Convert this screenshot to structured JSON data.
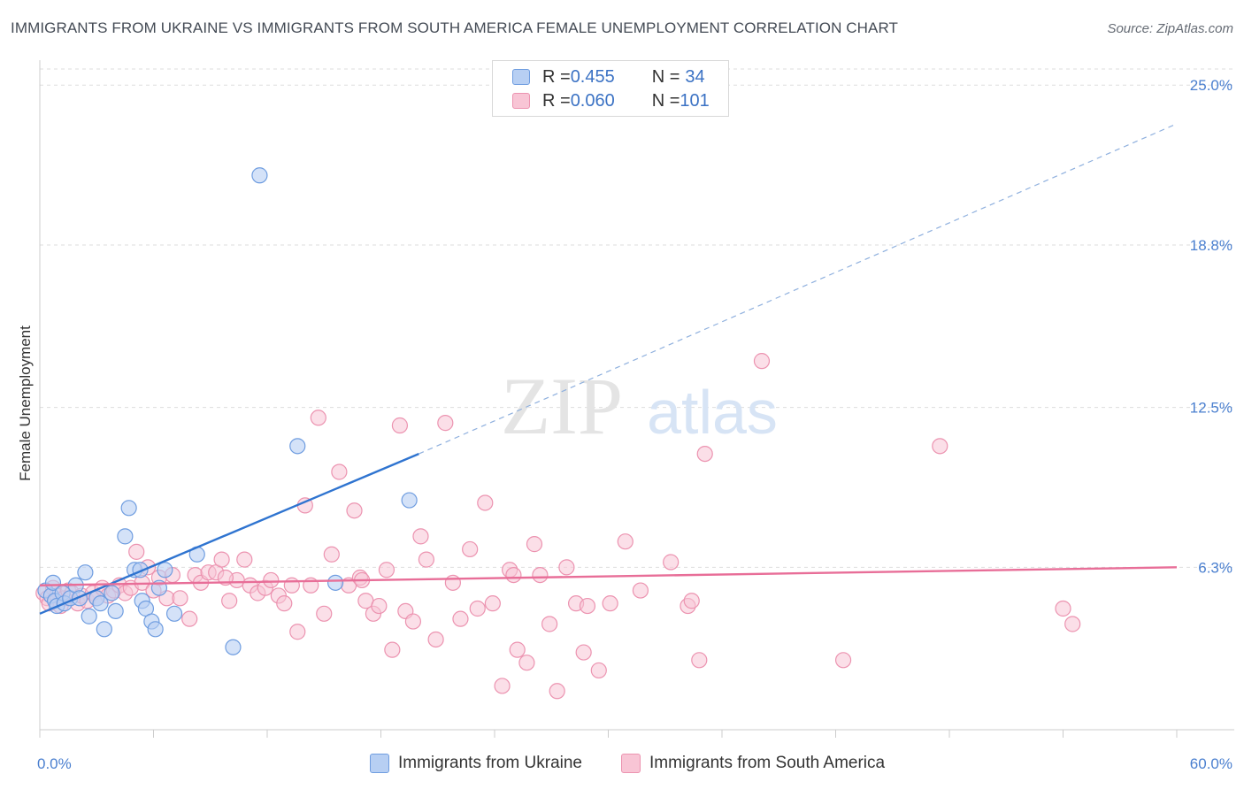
{
  "title": "IMMIGRANTS FROM UKRAINE VS IMMIGRANTS FROM SOUTH AMERICA FEMALE UNEMPLOYMENT CORRELATION CHART",
  "source": "Source: ZipAtlas.com",
  "watermark": {
    "zip": "ZIP",
    "atlas": "atlas"
  },
  "legend": {
    "rows": [
      {
        "r_label": "R = ",
        "r_value": "0.455",
        "n_label": "N = ",
        "n_value": "34"
      },
      {
        "r_label": "R = ",
        "r_value": "0.060",
        "n_label": "N = ",
        "n_value": "101"
      }
    ]
  },
  "colors": {
    "ukraine_fill": "#b7cff3",
    "ukraine_stroke": "#6f9de0",
    "ukraine_line": "#2f74d0",
    "sa_fill": "#f8c5d5",
    "sa_stroke": "#ec93b0",
    "sa_line": "#e86e98",
    "tick_label": "#4a7fcf",
    "grid": "#dddddd"
  },
  "chart_data": {
    "type": "scatter",
    "xlabel": "",
    "ylabel": "Female Unemployment",
    "xlim": [
      0,
      60
    ],
    "ylim": [
      0,
      25.9
    ],
    "x_tick_labels": [
      {
        "value": 0,
        "label": "0.0%"
      },
      {
        "value": 60,
        "label": "60.0%"
      }
    ],
    "y_tick_labels": [
      {
        "value": 6.3,
        "label": "6.3%"
      },
      {
        "value": 12.5,
        "label": "12.5%"
      },
      {
        "value": 18.8,
        "label": "18.8%"
      },
      {
        "value": 25.0,
        "label": "25.0%"
      }
    ],
    "grid": "horizontal dashed",
    "legend_placement": "bottom",
    "series": [
      {
        "name": "Immigrants from Ukraine",
        "points": [
          [
            0.3,
            5.4
          ],
          [
            0.6,
            5.2
          ],
          [
            0.8,
            5.0
          ],
          [
            0.7,
            5.7
          ],
          [
            0.9,
            4.8
          ],
          [
            1.2,
            5.3
          ],
          [
            1.3,
            4.9
          ],
          [
            1.6,
            5.1
          ],
          [
            1.9,
            5.6
          ],
          [
            2.1,
            5.1
          ],
          [
            2.4,
            6.1
          ],
          [
            2.6,
            4.4
          ],
          [
            3.0,
            5.1
          ],
          [
            3.2,
            4.9
          ],
          [
            3.4,
            3.9
          ],
          [
            3.8,
            5.3
          ],
          [
            4.0,
            4.6
          ],
          [
            4.5,
            7.5
          ],
          [
            4.7,
            8.6
          ],
          [
            5.0,
            6.2
          ],
          [
            5.3,
            6.2
          ],
          [
            5.4,
            5.0
          ],
          [
            5.6,
            4.7
          ],
          [
            5.9,
            4.2
          ],
          [
            6.1,
            3.9
          ],
          [
            6.3,
            5.5
          ],
          [
            6.6,
            6.2
          ],
          [
            7.1,
            4.5
          ],
          [
            8.3,
            6.8
          ],
          [
            10.2,
            3.2
          ],
          [
            11.6,
            21.5
          ],
          [
            13.6,
            11.0
          ],
          [
            15.6,
            5.7
          ],
          [
            19.5,
            8.9
          ]
        ]
      },
      {
        "name": "Immigrants from South America",
        "points": [
          [
            0.2,
            5.3
          ],
          [
            0.4,
            5.1
          ],
          [
            0.5,
            4.9
          ],
          [
            0.7,
            5.5
          ],
          [
            0.9,
            5.2
          ],
          [
            1.1,
            4.8
          ],
          [
            1.3,
            5.1
          ],
          [
            1.5,
            5.4
          ],
          [
            1.7,
            5.3
          ],
          [
            2.0,
            4.9
          ],
          [
            2.2,
            5.2
          ],
          [
            2.5,
            5.0
          ],
          [
            2.8,
            5.3
          ],
          [
            3.0,
            5.1
          ],
          [
            3.3,
            5.5
          ],
          [
            3.6,
            5.2
          ],
          [
            3.9,
            5.4
          ],
          [
            4.2,
            5.6
          ],
          [
            4.5,
            5.3
          ],
          [
            4.8,
            5.5
          ],
          [
            5.1,
            6.9
          ],
          [
            5.4,
            5.7
          ],
          [
            5.7,
            6.3
          ],
          [
            6.0,
            5.4
          ],
          [
            6.3,
            5.9
          ],
          [
            6.7,
            5.1
          ],
          [
            7.0,
            6.0
          ],
          [
            7.4,
            5.1
          ],
          [
            7.9,
            4.3
          ],
          [
            8.2,
            6.0
          ],
          [
            8.5,
            5.7
          ],
          [
            8.9,
            6.1
          ],
          [
            9.3,
            6.1
          ],
          [
            9.6,
            6.6
          ],
          [
            10.0,
            5.0
          ],
          [
            10.4,
            5.8
          ],
          [
            10.8,
            6.6
          ],
          [
            11.1,
            5.6
          ],
          [
            11.5,
            5.3
          ],
          [
            11.9,
            5.5
          ],
          [
            12.2,
            5.8
          ],
          [
            12.6,
            5.2
          ],
          [
            12.9,
            4.9
          ],
          [
            13.3,
            5.6
          ],
          [
            13.6,
            3.8
          ],
          [
            14.0,
            8.7
          ],
          [
            14.3,
            5.6
          ],
          [
            14.7,
            12.1
          ],
          [
            15.0,
            4.5
          ],
          [
            15.4,
            6.8
          ],
          [
            15.8,
            10.0
          ],
          [
            16.3,
            5.6
          ],
          [
            16.6,
            8.5
          ],
          [
            16.9,
            5.9
          ],
          [
            17.2,
            5.0
          ],
          [
            17.6,
            4.5
          ],
          [
            17.9,
            4.8
          ],
          [
            18.3,
            6.2
          ],
          [
            18.6,
            3.1
          ],
          [
            19.0,
            11.8
          ],
          [
            19.3,
            4.6
          ],
          [
            19.7,
            4.2
          ],
          [
            20.1,
            7.5
          ],
          [
            20.4,
            6.6
          ],
          [
            20.9,
            3.5
          ],
          [
            21.4,
            11.9
          ],
          [
            21.8,
            5.7
          ],
          [
            22.2,
            4.3
          ],
          [
            22.7,
            7.0
          ],
          [
            23.1,
            4.7
          ],
          [
            23.5,
            8.8
          ],
          [
            23.9,
            4.9
          ],
          [
            24.4,
            1.7
          ],
          [
            24.8,
            6.2
          ],
          [
            25.2,
            3.1
          ],
          [
            25.7,
            2.6
          ],
          [
            26.1,
            7.2
          ],
          [
            26.4,
            6.0
          ],
          [
            26.9,
            4.1
          ],
          [
            27.3,
            1.5
          ],
          [
            27.8,
            6.3
          ],
          [
            28.3,
            4.9
          ],
          [
            28.7,
            3.0
          ],
          [
            28.9,
            4.8
          ],
          [
            29.5,
            2.3
          ],
          [
            30.1,
            4.9
          ],
          [
            30.9,
            7.3
          ],
          [
            31.7,
            5.4
          ],
          [
            33.3,
            6.5
          ],
          [
            34.2,
            4.8
          ],
          [
            34.4,
            5.0
          ],
          [
            34.8,
            2.7
          ],
          [
            35.1,
            10.7
          ],
          [
            38.1,
            14.3
          ],
          [
            42.4,
            2.7
          ],
          [
            47.5,
            11.0
          ],
          [
            54.0,
            4.7
          ],
          [
            54.5,
            4.1
          ],
          [
            25.0,
            6.0
          ],
          [
            17.0,
            5.8
          ],
          [
            9.8,
            5.9
          ]
        ]
      }
    ],
    "trend_lines": [
      {
        "series": "Immigrants from Ukraine",
        "solid_from": [
          0,
          4.5
        ],
        "solid_to": [
          20,
          10.7
        ],
        "dashed_to": [
          60,
          23.5
        ]
      },
      {
        "series": "Immigrants from South America",
        "from": [
          0,
          5.6
        ],
        "to": [
          60,
          6.3
        ]
      }
    ]
  }
}
